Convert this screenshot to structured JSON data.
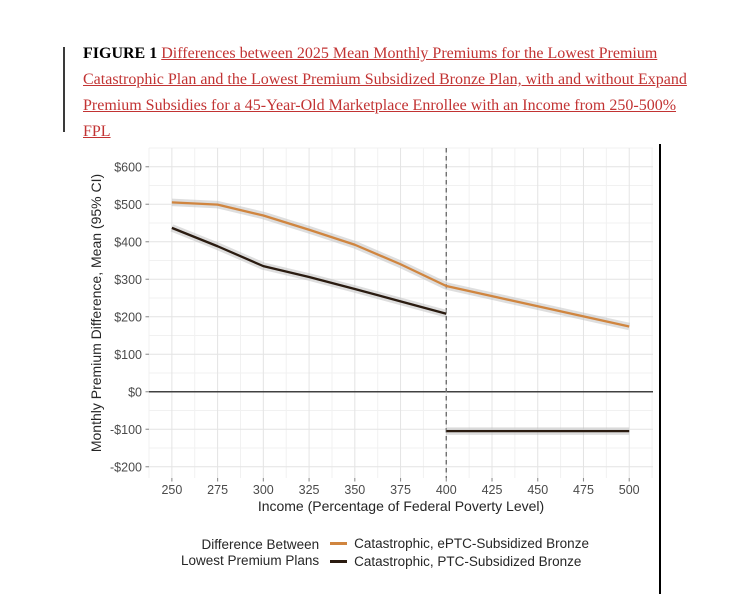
{
  "figure": {
    "label": "FIGURE 1 ",
    "title": "Differences between 2025 Mean Monthly Premiums for the Lowest Premium Catastrophic Plan and the Lowest Premium Subsidized Bronze Plan, with and without Expand Premium Subsidies for a 45-Year-Old Marketplace Enrollee with an Income from 250-500% FPL",
    "link_color": "#C23333"
  },
  "chart_data": {
    "type": "line",
    "title": "",
    "xlabel": "Income (Percentage of Federal Poverty Level)",
    "ylabel": "Monthly Premium Difference, Mean (95% CI)",
    "x_ticks": [
      250,
      275,
      300,
      325,
      350,
      375,
      400,
      425,
      450,
      475,
      500
    ],
    "x_tick_labels": [
      "250",
      "275",
      "300",
      "325",
      "350",
      "375",
      "400",
      "425",
      "450",
      "475",
      "500"
    ],
    "y_ticks": [
      600,
      500,
      400,
      300,
      200,
      100,
      0,
      -100,
      -200
    ],
    "y_tick_labels": [
      "$600",
      "$500",
      "$400",
      "$300",
      "$200",
      "$100",
      "$0",
      "-$100",
      "-$200"
    ],
    "xlim": [
      237.5,
      513
    ],
    "ylim": [
      -230,
      650
    ],
    "grid": {
      "major": true,
      "minor": true,
      "major_color": "#e4e4e4",
      "minor_color": "#f1f1f1"
    },
    "reference": {
      "zero_line_y": 0,
      "zero_line_color": "#414141",
      "dashed_line_x": 400,
      "dashed_line_color": "#6f6f6f"
    },
    "ci_ribbon": {
      "color": "#bdbdbd",
      "opacity": 0.5
    },
    "series": [
      {
        "name": "Catastrophic, ePTC-Subsidized Bronze",
        "color": "#D0853F",
        "segments": [
          {
            "x": [
              250,
              275,
              300,
              325,
              350,
              375,
              400,
              425,
              450,
              475,
              500
            ],
            "y": [
              505,
              499,
              470,
              432,
              392,
              340,
              282,
              255,
              228,
              201,
              174
            ]
          }
        ]
      },
      {
        "name": "Catastrophic, PTC-Subsidized Bronze",
        "color": "#2A1B10",
        "segments": [
          {
            "x": [
              250,
              275,
              300,
              325,
              350,
              375,
              400
            ],
            "y": [
              437,
              388,
              335,
              306,
              274,
              241,
              208
            ]
          },
          {
            "x": [
              400,
              425,
              450,
              475,
              500
            ],
            "y": [
              -105,
              -105,
              -105,
              -105,
              -105
            ]
          }
        ]
      }
    ],
    "legend": {
      "position": "bottom",
      "title_lines": [
        "Difference Between",
        "Lowest Premium Plans"
      ]
    }
  }
}
